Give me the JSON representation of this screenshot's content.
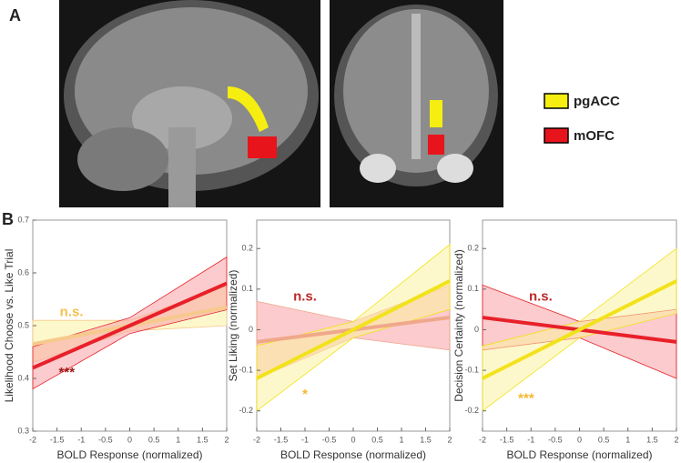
{
  "labels": {
    "a": "A",
    "b": "B"
  },
  "legend": [
    {
      "name": "pgACC",
      "color": "#f5ee10"
    },
    {
      "name": "mOFC",
      "color": "#e8141c"
    }
  ],
  "chart_data": [
    {
      "type": "line",
      "ylabel": "Likelihood Choose vs. Like Trial",
      "xlabel": "BOLD Response (normalized)",
      "x": [
        -2,
        0,
        2
      ],
      "xlim": [
        -2,
        2
      ],
      "ylim": [
        0.3,
        0.7
      ],
      "xticks": [
        -2,
        -1.5,
        -1,
        -0.5,
        0,
        0.5,
        1,
        1.5,
        2
      ],
      "yticks": [
        0.3,
        0.4,
        0.5,
        0.6,
        0.7
      ],
      "series": [
        {
          "name": "pgACC",
          "color": "#f7c98c",
          "band_color": "#fbf3a0",
          "values": [
            0.465,
            0.5,
            0.535
          ],
          "lower": [
            0.43,
            0.49,
            0.5
          ],
          "upper": [
            0.51,
            0.51,
            0.575
          ]
        },
        {
          "name": "mOFC",
          "color": "#e8202a",
          "band_color": "#f7a0a4",
          "values": [
            0.42,
            0.5,
            0.58
          ],
          "lower": [
            0.38,
            0.485,
            0.53
          ],
          "upper": [
            0.46,
            0.515,
            0.63
          ]
        }
      ],
      "annotations": [
        {
          "text": "n.s.",
          "color": "#f5c050"
        },
        {
          "text": "***",
          "color": "#a01818"
        }
      ]
    },
    {
      "type": "line",
      "ylabel": "Set Liking (normalized)",
      "xlabel": "BOLD Response (normalized)",
      "x": [
        -2,
        0,
        2
      ],
      "xlim": [
        -2,
        2
      ],
      "ylim": [
        -0.25,
        0.27
      ],
      "xticks": [
        -2,
        -1.5,
        -1,
        -0.5,
        0,
        0.5,
        1,
        1.5,
        2
      ],
      "yticks": [
        -0.2,
        -0.1,
        0,
        0.1,
        0.2
      ],
      "series": [
        {
          "name": "mOFC",
          "color": "#f0a88a",
          "band_color": "#f7a0a4",
          "values": [
            -0.03,
            0,
            0.03
          ],
          "lower": [
            -0.12,
            -0.02,
            -0.05
          ],
          "upper": [
            0.07,
            0.02,
            0.11
          ]
        },
        {
          "name": "pgACC",
          "color": "#f2e21a",
          "band_color": "#fbf3a0",
          "values": [
            -0.12,
            0,
            0.12
          ],
          "lower": [
            -0.2,
            -0.02,
            0.05
          ],
          "upper": [
            -0.04,
            0.02,
            0.21
          ]
        }
      ],
      "annotations": [
        {
          "text": "n.s.",
          "color": "#c0282a"
        },
        {
          "text": "*",
          "color": "#f5b830"
        }
      ]
    },
    {
      "type": "line",
      "ylabel": "Decision Certainty (normalized)",
      "xlabel": "BOLD Response (normalized)",
      "x": [
        -2,
        0,
        2
      ],
      "xlim": [
        -2,
        2
      ],
      "ylim": [
        -0.25,
        0.27
      ],
      "xticks": [
        -2,
        -1.5,
        -1,
        -0.5,
        0,
        0.5,
        1,
        1.5,
        2
      ],
      "yticks": [
        -0.2,
        -0.1,
        0,
        0.1,
        0.2
      ],
      "series": [
        {
          "name": "mOFC",
          "color": "#e8202a",
          "band_color": "#f7a0a4",
          "values": [
            0.03,
            0,
            -0.03
          ],
          "lower": [
            -0.05,
            -0.02,
            -0.12
          ],
          "upper": [
            0.11,
            0.02,
            0.05
          ]
        },
        {
          "name": "pgACC",
          "color": "#f2e21a",
          "band_color": "#fbf3a0",
          "values": [
            -0.12,
            0,
            0.12
          ],
          "lower": [
            -0.2,
            -0.02,
            0.04
          ],
          "upper": [
            -0.04,
            0.02,
            0.2
          ]
        }
      ],
      "annotations": [
        {
          "text": "n.s.",
          "color": "#c0282a"
        },
        {
          "text": "***",
          "color": "#f5b830"
        }
      ]
    }
  ]
}
